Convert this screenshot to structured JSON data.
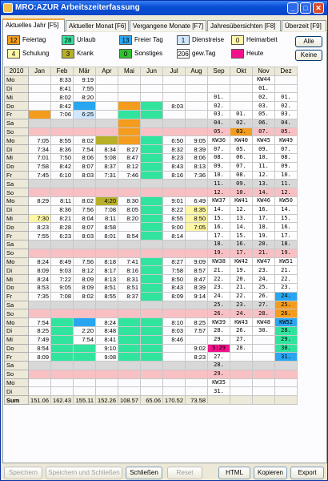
{
  "window": {
    "title": "MRO:AZUR Arbeitszeiterfassung"
  },
  "tabs": [
    "Aktuelles Jahr [F5]",
    "Aktueller Monat [F6]",
    "Vergangene Monate [F7]",
    "Jahresübersichten [F8]",
    "Überzeit [F9]"
  ],
  "legend": [
    {
      "num": "12",
      "label": "Feiertag",
      "color": "#f39c1e"
    },
    {
      "num": "28",
      "label": "Urlaub",
      "color": "#30e49e"
    },
    {
      "num": "13",
      "label": "Freier Tag",
      "color": "#2aa6f0"
    },
    {
      "num": "1",
      "label": "Dienstreise",
      "color": "#cfe8ff"
    },
    {
      "num": "0",
      "label": "Heimarbeit",
      "color": "#fff6a6"
    },
    {
      "num": "4",
      "label": "Schulung",
      "color": "#fff6a6"
    },
    {
      "num": "3",
      "label": "Krank",
      "color": "#b9b02a"
    },
    {
      "num": "0",
      "label": "Sonstiges",
      "color": "#30c030"
    },
    {
      "num": "206",
      "label": "gew.Tag",
      "color": "#ffffff"
    },
    {
      "num": "",
      "label": "Heute",
      "color": "#f2128c"
    }
  ],
  "legend_buttons": {
    "alle": "Alle",
    "keine": "Keine"
  },
  "table": {
    "year": "2010",
    "months": [
      "Jan",
      "Feb",
      "Mär",
      "Apr",
      "Mai",
      "Jun",
      "Jul",
      "Aug",
      "Sep",
      "Okt",
      "Nov",
      "Dez"
    ],
    "sum_label": "Sum",
    "sums": [
      "151.06",
      "162.43",
      "155.11",
      "152.26",
      "108.57",
      "65.06",
      "170.52",
      "73.58",
      "",
      "",
      "",
      ""
    ]
  },
  "buttons": {
    "speichern": "Speichern",
    "speichern_schliessen": "Speichern und Schließen",
    "schliessen": "Schließen",
    "reset": "Reset",
    "html": "HTML",
    "kopieren": "Kopieren",
    "export": "Export"
  }
}
